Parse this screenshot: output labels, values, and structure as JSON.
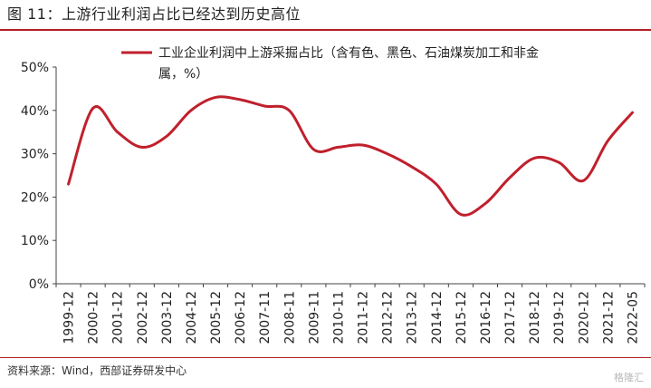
{
  "header": {
    "title": "图 11：上游行业利润占比已经达到历史高位"
  },
  "footer": {
    "source": "资料来源：Wind，西部证券研发中心",
    "watermark": "格隆汇"
  },
  "chart_data": {
    "type": "line",
    "title": "图 11：上游行业利润占比已经达到历史高位",
    "xlabel": "",
    "ylabel": "",
    "ylim": [
      0,
      50
    ],
    "y_ticks": [
      "0%",
      "10%",
      "20%",
      "30%",
      "40%",
      "50%"
    ],
    "grid": false,
    "legend_position": "top-right",
    "categories": [
      "1999-12",
      "2000-12",
      "2001-12",
      "2002-12",
      "2003-12",
      "2004-12",
      "2005-12",
      "2006-12",
      "2007-11",
      "2008-11",
      "2009-11",
      "2010-11",
      "2011-12",
      "2012-12",
      "2013-12",
      "2014-12",
      "2015-12",
      "2016-12",
      "2017-12",
      "2018-12",
      "2019-12",
      "2020-12",
      "2021-12",
      "2022-05"
    ],
    "series": [
      {
        "name": "工业企业利润中上游采掘占比（含有色、黑色、石油煤炭加工和非金属，%）",
        "legend_lines": [
          "工业企业利润中上游采掘占比（含有色、黑色、石油煤炭加工和非金",
          "属，%）"
        ],
        "color": "#c0202c",
        "values": [
          23,
          40.5,
          35,
          31.5,
          34,
          40,
          43,
          42.5,
          41,
          40,
          31,
          31.5,
          32,
          30,
          27,
          23,
          16,
          18.5,
          24.5,
          29,
          28,
          23.8,
          33,
          39.5
        ]
      }
    ]
  }
}
